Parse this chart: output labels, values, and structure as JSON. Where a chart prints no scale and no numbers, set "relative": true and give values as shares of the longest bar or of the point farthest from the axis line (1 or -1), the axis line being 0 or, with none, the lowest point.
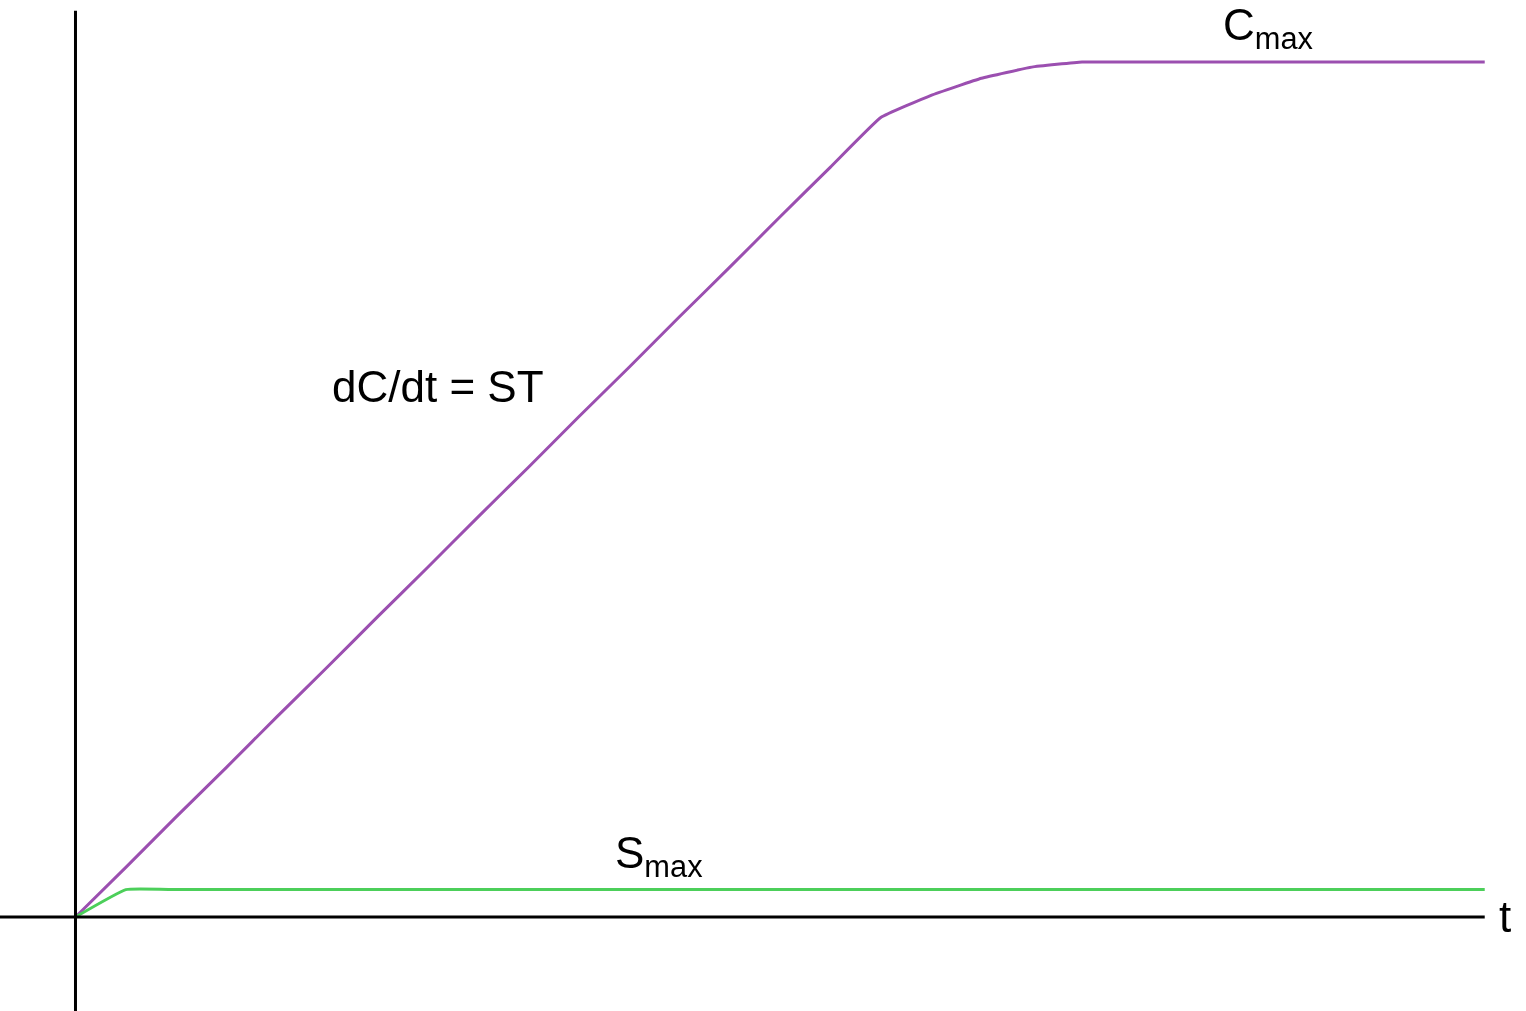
{
  "chart_data": {
    "type": "line",
    "relative": true,
    "xlabel": "t",
    "categories": [
      null,
      null,
      null,
      null,
      null,
      null,
      null,
      null,
      null,
      null,
      null,
      null,
      null,
      null,
      null,
      null,
      null,
      null,
      null,
      null,
      null,
      null,
      null,
      null,
      null,
      null,
      null,
      null,
      null
    ],
    "series": [
      {
        "color": "#9b4fb0",
        "values": [
          0,
          0.058,
          0.117,
          0.175,
          0.234,
          0.292,
          0.351,
          0.409,
          0.468,
          0.526,
          0.585,
          0.643,
          0.702,
          0.76,
          0.819,
          0.877,
          0.935,
          0.961,
          0.981,
          0.994,
          1,
          1,
          1,
          1,
          1,
          1,
          1,
          1,
          1
        ]
      },
      {
        "color": "#4ccf5a",
        "values": [
          0,
          0.032,
          0.032,
          0.032,
          0.032,
          0.032,
          0.032,
          0.032,
          0.032,
          0.032,
          0.032,
          0.032,
          0.032,
          0.032,
          0.032,
          0.032,
          0.032,
          0.032,
          0.032,
          0.032,
          0.032,
          0.032,
          0.032,
          0.032,
          0.032,
          0.032,
          0.032,
          0.032,
          0.032
        ]
      }
    ],
    "annotations": [
      "C$_{max}$",
      "dC/dt = ST",
      "S$_{max}$"
    ],
    "marker": "none",
    "line_style": "solid"
  }
}
